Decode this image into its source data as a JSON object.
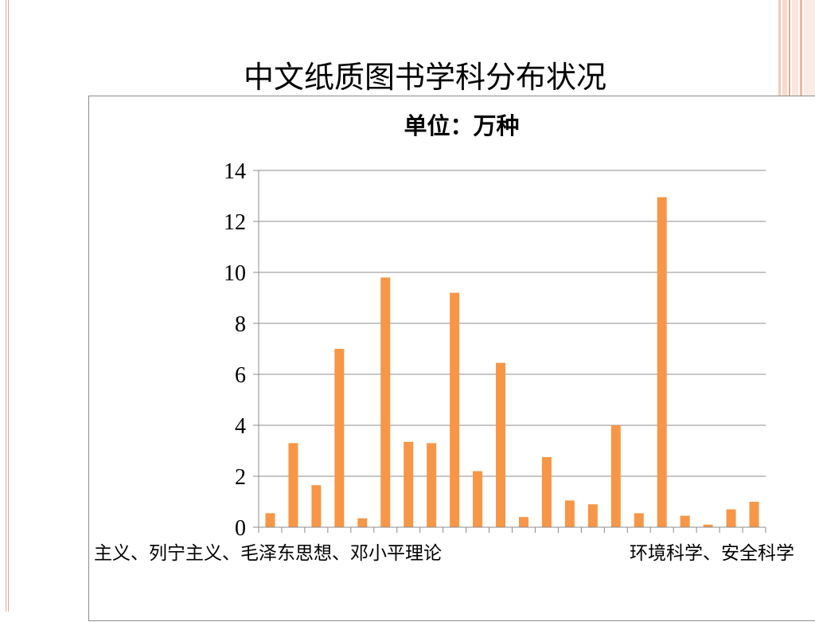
{
  "slide": {
    "title": "中文纸质图书学科分布状况"
  },
  "colors": {
    "bar": "#F79646",
    "grid": "#8c8c8c",
    "frame": "#8c8c8c",
    "accent_border": "#e8a890"
  },
  "chart_data": {
    "type": "bar",
    "title": "单位：万种",
    "categories": [
      "马克思主义、列宁主义、毛泽东思想、邓小平理论",
      "",
      "",
      "",
      "",
      "",
      "",
      "",
      "",
      "",
      "",
      "",
      "",
      "",
      "",
      "",
      "",
      "",
      "",
      "",
      "",
      "环境科学、安全科学"
    ],
    "values": [
      0.55,
      3.3,
      1.65,
      7.0,
      0.35,
      9.8,
      3.35,
      3.3,
      9.2,
      2.2,
      6.45,
      0.4,
      2.75,
      1.05,
      0.9,
      4.0,
      0.55,
      12.95,
      0.45,
      0.1,
      0.7,
      1.0
    ],
    "ylim": [
      0,
      14
    ],
    "yticks": [
      "0",
      "2",
      "4",
      "6",
      "8",
      "10",
      "12",
      "14"
    ],
    "visible_category_labels": [
      "主义、列宁主义、毛泽东思想、邓小平理论",
      "环境科学、安全科学"
    ],
    "grid": true,
    "legend": "none"
  }
}
